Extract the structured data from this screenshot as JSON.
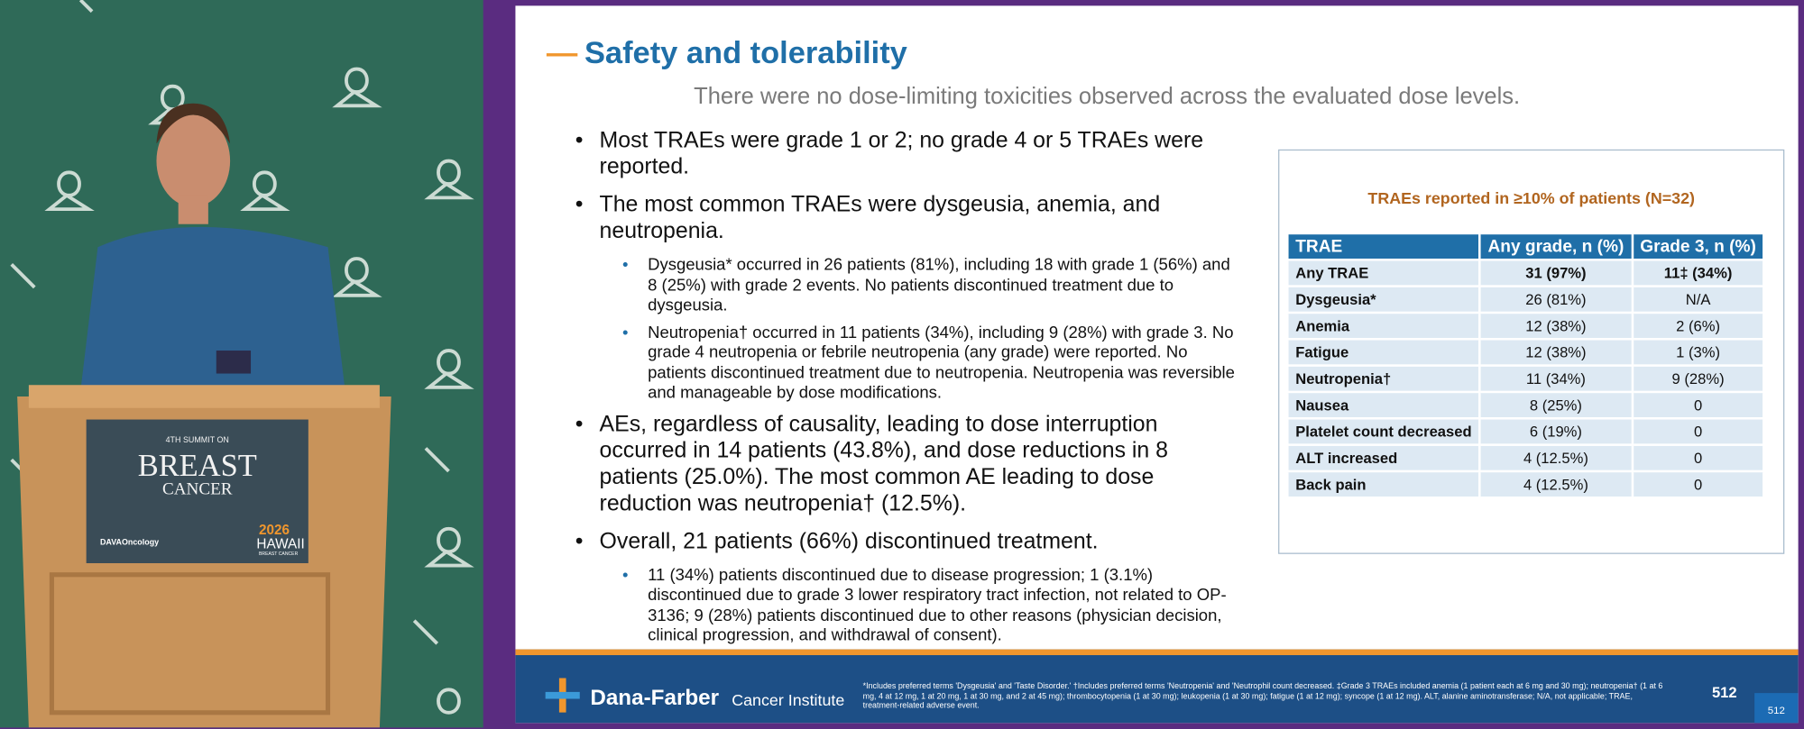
{
  "video": {
    "podium": {
      "line1": "4TH SUMMIT ON",
      "line2": "BREAST",
      "line3": "CANCER",
      "sponsor": "DAVAOncology",
      "year": "2026",
      "place": "HAWAII",
      "event": "BREAST CANCER"
    }
  },
  "slide": {
    "title": "Safety and tolerability",
    "subtitle": "There were no dose-limiting toxicities observed across the evaluated dose levels.",
    "bullets": [
      {
        "text": "Most TRAEs were grade 1 or 2; no grade 4 or 5 TRAEs were reported.",
        "subs": []
      },
      {
        "text": "The most common TRAEs were dysgeusia, anemia, and neutropenia.",
        "subs": [
          "Dysgeusia* occurred in 26 patients (81%), including 18 with grade 1 (56%) and 8 (25%) with grade 2 events. No patients discontinued treatment due to dysgeusia.",
          "Neutropenia† occurred in 11 patients (34%), including 9 (28%) with grade 3.  No grade 4 neutropenia or febrile neutropenia (any grade) were reported. No patients discontinued treatment due to neutropenia. Neutropenia was reversible and manageable by dose modifications."
        ]
      },
      {
        "text": "AEs, regardless of causality, leading to dose interruption occurred in 14 patients (43.8%), and dose reductions in 8 patients (25.0%). The most common AE leading to dose reduction was neutropenia† (12.5%).",
        "subs": []
      },
      {
        "text": "Overall, 21 patients (66%) discontinued treatment.",
        "subs": [
          "11 (34%) patients discontinued due to disease progression; 1 (3.1%) discontinued due to grade 3 lower respiratory tract infection, not related to OP-3136; 9 (28%) patients discontinued due to other reasons (physician decision, clinical progression, and withdrawal of consent)."
        ]
      }
    ],
    "table": {
      "title": "TRAEs reported in ≥10% of patients (N=32)",
      "header": [
        "TRAE",
        "Any grade, n (%)",
        "Grade 3, n (%)"
      ],
      "rows": [
        [
          "Any TRAE",
          "31 (97%)",
          "11‡ (34%)"
        ],
        [
          "Dysgeusia*",
          "26 (81%)",
          "N/A"
        ],
        [
          "Anemia",
          "12 (38%)",
          "2 (6%)"
        ],
        [
          "Fatigue",
          "12 (38%)",
          "1 (3%)"
        ],
        [
          "Neutropenia†",
          "11 (34%)",
          "9 (28%)"
        ],
        [
          "Nausea",
          "8 (25%)",
          "0"
        ],
        [
          "Platelet count decreased",
          "6 (19%)",
          "0"
        ],
        [
          "ALT increased",
          "4 (12.5%)",
          "0"
        ],
        [
          "Back pain",
          "4 (12.5%)",
          "0"
        ]
      ]
    },
    "footer": {
      "institute": "Dana-Farber",
      "institute_sub": "Cancer Institute",
      "footnote": "*Includes preferred terms 'Dysgeusia' and 'Taste Disorder.' †Includes preferred terms 'Neutropenia' and 'Neutrophil count decreased. ‡Grade 3 TRAEs included anemia (1 patient each at 6 mg and 30 mg); neutropenia† (1 at 6 mg, 4 at 12 mg, 1 at 20 mg, 1 at 30 mg, and 2 at 45 mg); thrombocytopenia (1 at 30 mg); leukopenia (1 at 30 mg); fatigue (1 at 12 mg); syncope (1 at 12 mg). ALT, alanine aminotransferase; N/A, not applicable; TRAE, treatment-related adverse event.",
      "page": "512"
    }
  }
}
